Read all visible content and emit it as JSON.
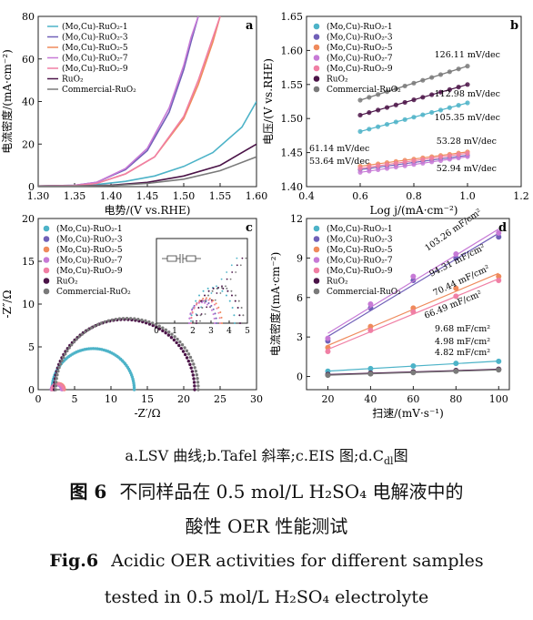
{
  "caption": {
    "subcaption": "a.LSV 曲线;b.Tafel 斜率;c.EIS 图;d.C",
    "subcaption_sub": "dl",
    "subcaption_end": "图",
    "figure_label_cn": "图 6",
    "title_cn_line1": "不同样品在 0.5 mol/L H₂SO₄ 电解液中的",
    "title_cn_line2": "酸性 OER 性能测试",
    "figure_label_en": "Fig.6",
    "title_en_line1": "Acidic OER activities for different samples",
    "title_en_line2": "tested in 0.5 mol/L H₂SO₄ electrolyte"
  },
  "chart_data": [
    {
      "panel": "a",
      "type": "line",
      "xlabel": "电势/(V vs.RHE)",
      "ylabel": "电流密度/(mA·cm⁻²)",
      "xlim": [
        1.3,
        1.6
      ],
      "ylim": [
        0,
        80
      ],
      "xticks": [
        "1.30",
        "1.35",
        "1.40",
        "1.45",
        "1.50",
        "1.55",
        "1.60"
      ],
      "yticks": [
        "0",
        "20",
        "40",
        "60",
        "80"
      ],
      "legend_position": "top-left",
      "series": [
        {
          "name": "(Mo,Cu)-RuO₂-1",
          "color": "#4db3c8",
          "onset": 1.38,
          "x": [
            1.3,
            1.35,
            1.38,
            1.42,
            1.46,
            1.5,
            1.54,
            1.58,
            1.6
          ],
          "y": [
            0.3,
            0.5,
            1,
            2.5,
            5,
            9.5,
            16,
            28,
            40
          ]
        },
        {
          "name": "(Mo,Cu)-RuO₂-3",
          "color": "#7060b8",
          "onset": 1.37,
          "x": [
            1.3,
            1.35,
            1.38,
            1.42,
            1.45,
            1.48,
            1.5,
            1.51,
            1.52
          ],
          "y": [
            0.3,
            0.6,
            2,
            8,
            17,
            35,
            55,
            68,
            80
          ]
        },
        {
          "name": "(Mo,Cu)-RuO₂-5",
          "color": "#ef8a5c",
          "onset": 1.38,
          "x": [
            1.3,
            1.35,
            1.38,
            1.42,
            1.46,
            1.5,
            1.52,
            1.54,
            1.55
          ],
          "y": [
            0.3,
            0.5,
            1.5,
            6,
            14,
            32,
            48,
            68,
            80
          ]
        },
        {
          "name": "(Mo,Cu)-RuO₂-7",
          "color": "#c77ad6",
          "onset": 1.37,
          "x": [
            1.3,
            1.35,
            1.38,
            1.42,
            1.45,
            1.48,
            1.5,
            1.51,
            1.52
          ],
          "y": [
            0.3,
            0.6,
            2,
            8.5,
            18,
            37,
            57,
            70,
            80
          ]
        },
        {
          "name": "(Mo,Cu)-RuO₂-9",
          "color": "#f07fa4",
          "onset": 1.38,
          "x": [
            1.3,
            1.35,
            1.38,
            1.42,
            1.46,
            1.5,
            1.52,
            1.54,
            1.55
          ],
          "y": [
            0.3,
            0.5,
            1.5,
            6,
            14,
            33,
            50,
            70,
            80
          ]
        },
        {
          "name": "RuO₂",
          "color": "#4b1448",
          "onset": 1.41,
          "x": [
            1.3,
            1.35,
            1.4,
            1.45,
            1.5,
            1.55,
            1.6
          ],
          "y": [
            0.2,
            0.3,
            0.7,
            2,
            5,
            10,
            20
          ]
        },
        {
          "name": "Commercial-RuO₂",
          "color": "#7a7a7a",
          "onset": 1.42,
          "x": [
            1.3,
            1.35,
            1.4,
            1.45,
            1.5,
            1.55,
            1.6
          ],
          "y": [
            0.2,
            0.3,
            0.5,
            1.5,
            3.5,
            7.5,
            14
          ]
        }
      ]
    },
    {
      "panel": "b",
      "type": "scatter",
      "xlabel": "Log j/(mA·cm⁻²)",
      "ylabel": "电压/(V vs.RHE)",
      "xlim": [
        0.4,
        1.2
      ],
      "ylim": [
        1.4,
        1.65
      ],
      "xticks": [
        "0.4",
        "0.6",
        "0.8",
        "1.0",
        "1.2"
      ],
      "yticks": [
        "1.40",
        "1.45",
        "1.50",
        "1.55",
        "1.60",
        "1.65"
      ],
      "legend_position": "top-left",
      "series": [
        {
          "name": "(Mo,Cu)-RuO₂-1",
          "color": "#4db3c8",
          "x0": 0.6,
          "y0": 1.481,
          "x1": 1.0,
          "y1": 1.523
        },
        {
          "name": "(Mo,Cu)-RuO₂-3",
          "color": "#7060b8",
          "x0": 0.6,
          "y0": 1.425,
          "x1": 1.0,
          "y1": 1.446
        },
        {
          "name": "(Mo,Cu)-RuO₂-5",
          "color": "#ef8a5c",
          "x0": 0.6,
          "y0": 1.43,
          "x1": 1.0,
          "y1": 1.451
        },
        {
          "name": "(Mo,Cu)-RuO₂-7",
          "color": "#c77ad6",
          "x0": 0.6,
          "y0": 1.421,
          "x1": 1.0,
          "y1": 1.444
        },
        {
          "name": "(Mo,Cu)-RuO₂-9",
          "color": "#f07fa4",
          "x0": 0.6,
          "y0": 1.427,
          "x1": 1.0,
          "y1": 1.449
        },
        {
          "name": "RuO₂",
          "color": "#4b1448",
          "x0": 0.6,
          "y0": 1.505,
          "x1": 1.0,
          "y1": 1.55
        },
        {
          "name": "Commercial-RuO₂",
          "color": "#7a7a7a",
          "x0": 0.6,
          "y0": 1.527,
          "x1": 1.0,
          "y1": 1.577
        }
      ],
      "annotations": [
        "126.11 mV/dec",
        "112.98 mV/dec",
        "105.35 mV/dec",
        "61.14 mV/dec",
        "53.64 mV/dec",
        "53.28 mV/dec",
        "52.94 mV/dec"
      ]
    },
    {
      "panel": "c",
      "type": "scatter",
      "xlabel": "-Z′/Ω",
      "ylabel": "-Z″/Ω",
      "xlim": [
        0,
        30
      ],
      "ylim": [
        0,
        20
      ],
      "xticks": [
        "0",
        "5",
        "10",
        "15",
        "20",
        "25",
        "30"
      ],
      "yticks": [
        "0",
        "5",
        "10",
        "15",
        "20"
      ],
      "legend_position": "top-left",
      "series": [
        {
          "name": "(Mo,Cu)-RuO₂-1",
          "color": "#4db3c8",
          "r0": 1.9,
          "r1": 13.2
        },
        {
          "name": "(Mo,Cu)-RuO₂-3",
          "color": "#7060b8",
          "r0": 1.8,
          "r1": 3.3
        },
        {
          "name": "(Mo,Cu)-RuO₂-5",
          "color": "#ef8a5c",
          "r0": 1.9,
          "r1": 3.6
        },
        {
          "name": "(Mo,Cu)-RuO₂-7",
          "color": "#c77ad6",
          "r0": 1.8,
          "r1": 3.2
        },
        {
          "name": "(Mo,Cu)-RuO₂-9",
          "color": "#f07fa4",
          "r0": 1.9,
          "r1": 3.5
        },
        {
          "name": "RuO₂",
          "color": "#4b1448",
          "r0": 2.2,
          "r1": 21.5
        },
        {
          "name": "Commercial-RuO₂",
          "color": "#7a7a7a",
          "r0": 2.4,
          "r1": 22.0
        }
      ],
      "inset": {
        "xlim": [
          0,
          5
        ],
        "xticks": [
          "0",
          "1",
          "2",
          "3",
          "4",
          "5"
        ]
      }
    },
    {
      "panel": "d",
      "type": "scatter",
      "xlabel": "扫速/(mV·s⁻¹)",
      "ylabel": "电流密度/(mA·cm⁻²)",
      "xlim": [
        10,
        105
      ],
      "ylim": [
        -1,
        12
      ],
      "xticks": [
        "20",
        "40",
        "60",
        "80",
        "100"
      ],
      "yticks": [
        "0",
        "3",
        "6",
        "9",
        "12"
      ],
      "legend_position": "top-left",
      "x": [
        20,
        40,
        60,
        80,
        100
      ],
      "series": [
        {
          "name": "(Mo,Cu)-RuO₂-1",
          "color": "#4db3c8",
          "values": [
            0.4,
            0.6,
            0.8,
            1.0,
            1.15
          ]
        },
        {
          "name": "(Mo,Cu)-RuO₂-3",
          "color": "#7060b8",
          "values": [
            2.7,
            5.2,
            7.3,
            9.0,
            10.6
          ]
        },
        {
          "name": "(Mo,Cu)-RuO₂-5",
          "color": "#ef8a5c",
          "values": [
            2.2,
            3.8,
            5.2,
            6.7,
            7.6
          ]
        },
        {
          "name": "(Mo,Cu)-RuO₂-7",
          "color": "#c77ad6",
          "values": [
            2.9,
            5.5,
            7.6,
            9.3,
            10.9
          ]
        },
        {
          "name": "(Mo,Cu)-RuO₂-9",
          "color": "#f07fa4",
          "values": [
            1.9,
            3.5,
            4.9,
            6.1,
            7.3
          ]
        },
        {
          "name": "RuO₂",
          "color": "#4b1448",
          "values": [
            0.15,
            0.25,
            0.35,
            0.45,
            0.55
          ]
        },
        {
          "name": "Commercial-RuO₂",
          "color": "#7a7a7a",
          "values": [
            0.1,
            0.2,
            0.3,
            0.4,
            0.5
          ]
        }
      ],
      "annotations": [
        "103.26 mF/cm²",
        "94.31 mF/cm²",
        "70.44 mF/cm²",
        "66.49 mF/cm²",
        "9.68 mF/cm²",
        "4.98 mF/cm²",
        "4.82 mF/cm²"
      ]
    }
  ]
}
